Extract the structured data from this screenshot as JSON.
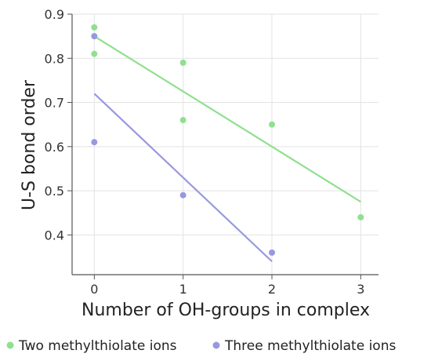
{
  "chart_data": {
    "type": "scatter",
    "xlabel": "Number of OH-groups in complex",
    "ylabel": "U-S bond order",
    "xlim": [
      -0.25,
      3.2
    ],
    "ylim": [
      0.31,
      0.9
    ],
    "x_ticks": [
      0,
      1,
      2,
      3
    ],
    "x_tick_labels": [
      "0",
      "1",
      "2",
      "3"
    ],
    "y_ticks": [
      0.4,
      0.5,
      0.6,
      0.7,
      0.8,
      0.9
    ],
    "y_tick_labels": [
      "0.4",
      "0.5",
      "0.6",
      "0.7",
      "0.8",
      "0.9"
    ],
    "grid": true,
    "legend_position": "bottom",
    "series": [
      {
        "name": "Two methylthiolate ions",
        "color": "#90e090",
        "points": [
          {
            "x": 0,
            "y": 0.87
          },
          {
            "x": 0,
            "y": 0.81
          },
          {
            "x": 1,
            "y": 0.79
          },
          {
            "x": 1,
            "y": 0.66
          },
          {
            "x": 2,
            "y": 0.65
          },
          {
            "x": 3,
            "y": 0.44
          }
        ],
        "trendline": {
          "x": [
            0,
            3
          ],
          "y": [
            0.85,
            0.475
          ]
        }
      },
      {
        "name": "Three methylthiolate ions",
        "color": "#9898e0",
        "points": [
          {
            "x": 0,
            "y": 0.85
          },
          {
            "x": 0,
            "y": 0.61
          },
          {
            "x": 1,
            "y": 0.49
          },
          {
            "x": 2,
            "y": 0.36
          }
        ],
        "trendline": {
          "x": [
            0,
            2
          ],
          "y": [
            0.72,
            0.34
          ]
        }
      }
    ]
  }
}
